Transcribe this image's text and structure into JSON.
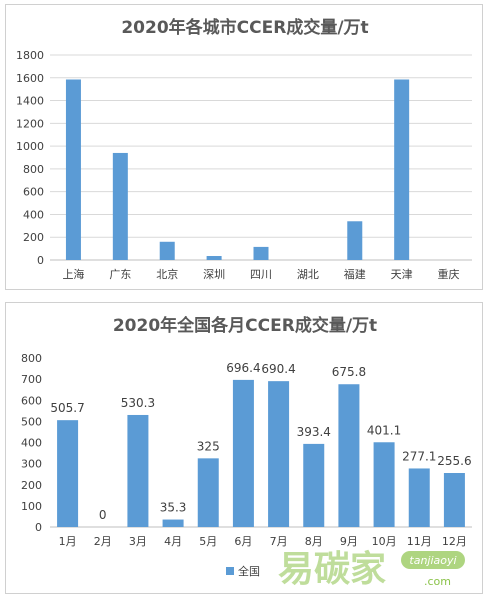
{
  "chart_data": [
    {
      "type": "bar",
      "title": "2020年各城市CCER成交量/万t",
      "categories": [
        "上海",
        "广东",
        "北京",
        "深圳",
        "四川",
        "湖北",
        "福建",
        "天津",
        "重庆"
      ],
      "values": [
        1585,
        940,
        160,
        35,
        115,
        0,
        340,
        1585,
        0
      ],
      "ylim": [
        0,
        1800
      ],
      "yticks": [
        "0",
        "200",
        "400",
        "600",
        "800",
        "1000",
        "1200",
        "1400",
        "1600",
        "1800"
      ],
      "grid": true,
      "color": "#5b9bd5"
    },
    {
      "type": "bar",
      "title": "2020年全国各月CCER成交量/万t",
      "categories": [
        "1月",
        "2月",
        "3月",
        "4月",
        "5月",
        "6月",
        "7月",
        "8月",
        "9月",
        "10月",
        "11月",
        "12月"
      ],
      "series": [
        {
          "name": "全国",
          "values": [
            505.7,
            0,
            530.3,
            35.3,
            325,
            696.4,
            690.4,
            393.4,
            675.8,
            401.1,
            277.1,
            255.6
          ],
          "labels": [
            "505.7",
            "0",
            "530.3",
            "35.3",
            "325",
            "696.4",
            "690.4",
            "393.4",
            "675.8",
            "401.1",
            "277.1",
            "255.6"
          ]
        }
      ],
      "ylim": [
        0,
        800
      ],
      "yticks": [
        "0",
        "100",
        "200",
        "300",
        "400",
        "500",
        "600",
        "700",
        "800"
      ],
      "grid": false,
      "legend": "bottom",
      "color": "#5b9bd5"
    }
  ],
  "watermark": {
    "text": "易碳家",
    "sub": "tanjiaoyi",
    "suffix": ".com"
  }
}
